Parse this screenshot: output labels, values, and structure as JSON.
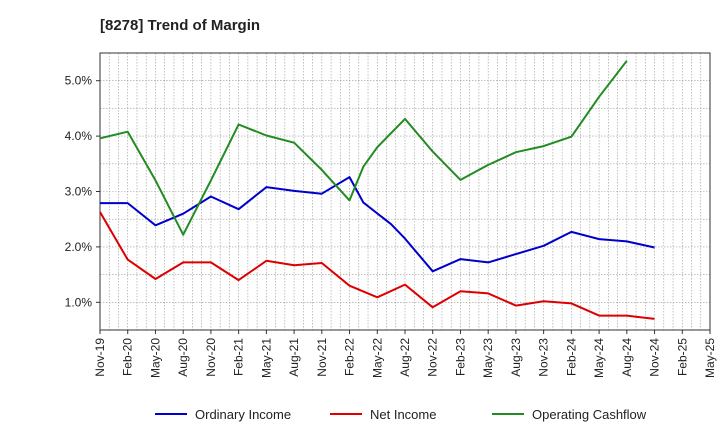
{
  "chart_data": {
    "type": "line",
    "title": "[8278]  Trend of Margin",
    "xlabel": "",
    "ylabel": "",
    "categories": [
      "Nov-19",
      "Feb-20",
      "May-20",
      "Aug-20",
      "Nov-20",
      "Feb-21",
      "May-21",
      "Aug-21",
      "Nov-21",
      "Feb-22",
      "May-22",
      "Aug-22",
      "Nov-22",
      "Feb-23",
      "May-23",
      "Aug-23",
      "Nov-23",
      "Feb-24",
      "May-24",
      "Aug-24",
      "Nov-24",
      "Feb-25",
      "May-25"
    ],
    "ylim": [
      0.5,
      5.5
    ],
    "yticks": [
      1.0,
      2.0,
      3.0,
      4.0,
      5.0
    ],
    "ytick_labels": [
      "1.0%",
      "2.0%",
      "3.0%",
      "4.0%",
      "5.0%"
    ],
    "grid": true,
    "legend_position": "bottom",
    "series": [
      {
        "name": "Ordinary Income",
        "color": "#0000cc",
        "points": [
          [
            0,
            2.79
          ],
          [
            1,
            2.79
          ],
          [
            2,
            2.39
          ],
          [
            3,
            2.6
          ],
          [
            4,
            2.91
          ],
          [
            5,
            2.68
          ],
          [
            6,
            3.08
          ],
          [
            7,
            3.01
          ],
          [
            8,
            2.96
          ],
          [
            9,
            3.26
          ],
          [
            9.5,
            2.8
          ],
          [
            10.5,
            2.41
          ],
          [
            11,
            2.15
          ],
          [
            12,
            1.56
          ],
          [
            13,
            1.78
          ],
          [
            14,
            1.72
          ],
          [
            15,
            1.87
          ],
          [
            16,
            2.02
          ],
          [
            17,
            2.27
          ],
          [
            18,
            2.14
          ],
          [
            19,
            2.1
          ],
          [
            20,
            1.99
          ]
        ]
      },
      {
        "name": "Net Income",
        "color": "#dd0000",
        "points": [
          [
            0,
            2.63
          ],
          [
            1,
            1.77
          ],
          [
            2,
            1.42
          ],
          [
            3,
            1.72
          ],
          [
            4,
            1.72
          ],
          [
            5,
            1.4
          ],
          [
            6,
            1.75
          ],
          [
            7,
            1.67
          ],
          [
            8,
            1.71
          ],
          [
            9,
            1.3
          ],
          [
            10,
            1.09
          ],
          [
            11,
            1.32
          ],
          [
            12,
            0.91
          ],
          [
            13,
            1.2
          ],
          [
            14,
            1.16
          ],
          [
            15,
            0.94
          ],
          [
            16,
            1.02
          ],
          [
            17,
            0.98
          ],
          [
            18,
            0.76
          ],
          [
            19,
            0.76
          ],
          [
            20,
            0.7
          ]
        ]
      },
      {
        "name": "Operating Cashflow",
        "color": "#228b22",
        "points": [
          [
            0,
            3.96
          ],
          [
            1,
            4.08
          ],
          [
            2,
            3.2
          ],
          [
            3,
            2.22
          ],
          [
            4,
            3.2
          ],
          [
            5,
            4.21
          ],
          [
            6,
            4.01
          ],
          [
            7,
            3.88
          ],
          [
            8,
            3.39
          ],
          [
            9,
            2.84
          ],
          [
            9.5,
            3.45
          ],
          [
            10,
            3.8
          ],
          [
            11,
            4.31
          ],
          [
            12,
            3.72
          ],
          [
            13,
            3.21
          ],
          [
            14,
            3.48
          ],
          [
            15,
            3.71
          ],
          [
            16,
            3.82
          ],
          [
            17,
            3.99
          ],
          [
            18,
            4.71
          ],
          [
            19,
            5.36
          ]
        ]
      }
    ]
  }
}
